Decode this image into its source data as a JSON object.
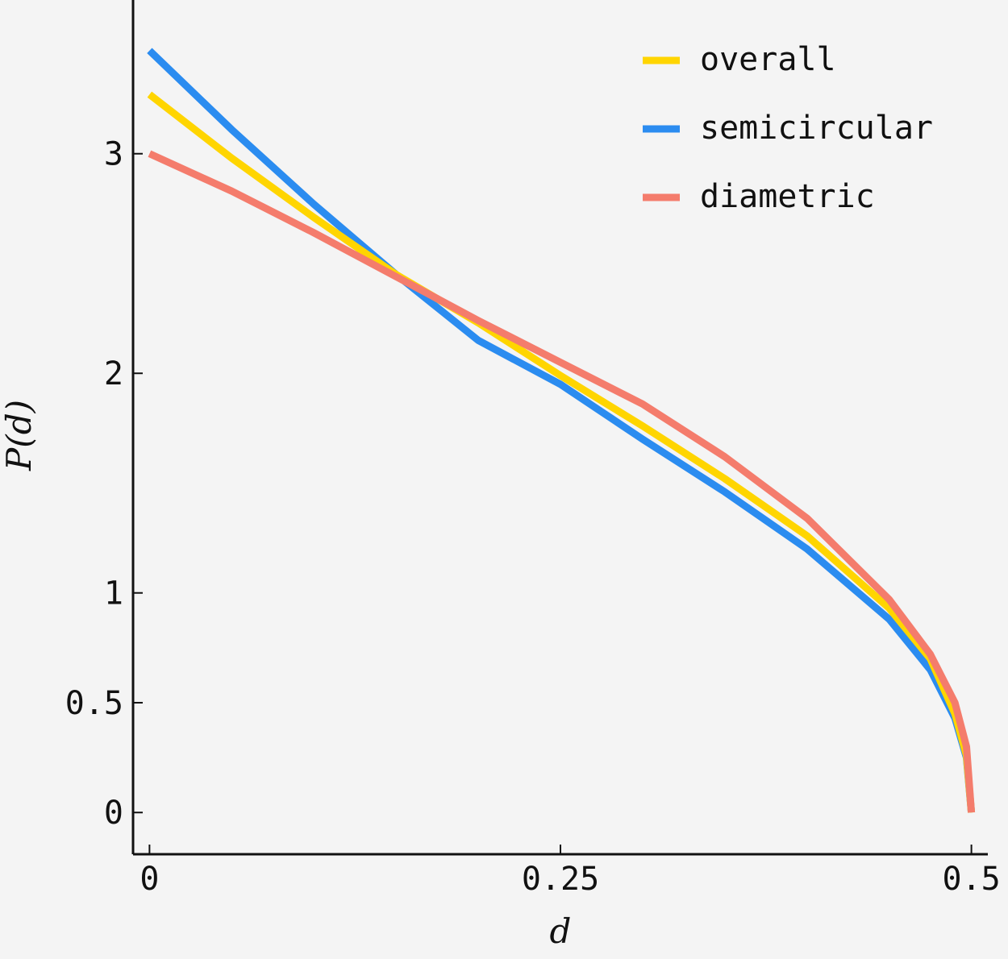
{
  "chart_data": {
    "type": "line",
    "xlabel": "d",
    "ylabel": "P(d)",
    "xlim": [
      -0.01,
      0.51
    ],
    "ylim": [
      -0.19,
      3.7
    ],
    "x_ticks": [
      {
        "value": 0,
        "label": "0"
      },
      {
        "value": 0.25,
        "label": "0.25"
      },
      {
        "value": 0.5,
        "label": "0.5"
      }
    ],
    "y_ticks": [
      {
        "value": 0,
        "label": "0"
      },
      {
        "value": 0.5,
        "label": "0.5"
      },
      {
        "value": 1,
        "label": "1"
      },
      {
        "value": 2,
        "label": "2"
      },
      {
        "value": 3,
        "label": "3"
      }
    ],
    "legend_position": "top-right",
    "grid": false,
    "series": [
      {
        "name": "overall",
        "color": "#ffd500",
        "points": [
          [
            0,
            3.27
          ],
          [
            0.05,
            2.98
          ],
          [
            0.1,
            2.71
          ],
          [
            0.15,
            2.45
          ],
          [
            0.2,
            2.23
          ],
          [
            0.25,
            1.99
          ],
          [
            0.3,
            1.76
          ],
          [
            0.35,
            1.52
          ],
          [
            0.4,
            1.26
          ],
          [
            0.45,
            0.93
          ],
          [
            0.475,
            0.7
          ],
          [
            0.49,
            0.45
          ],
          [
            0.497,
            0.26
          ],
          [
            0.5,
            0
          ]
        ]
      },
      {
        "name": "semicircular",
        "color": "#2b8cf0",
        "points": [
          [
            0,
            3.47
          ],
          [
            0.05,
            3.11
          ],
          [
            0.1,
            2.77
          ],
          [
            0.15,
            2.45
          ],
          [
            0.2,
            2.15
          ],
          [
            0.25,
            1.95
          ],
          [
            0.3,
            1.7
          ],
          [
            0.35,
            1.46
          ],
          [
            0.4,
            1.2
          ],
          [
            0.45,
            0.88
          ],
          [
            0.475,
            0.65
          ],
          [
            0.49,
            0.43
          ],
          [
            0.497,
            0.25
          ],
          [
            0.5,
            0
          ]
        ]
      },
      {
        "name": "diametric",
        "color": "#f47c6c",
        "points": [
          [
            0,
            3.0
          ],
          [
            0.05,
            2.83
          ],
          [
            0.1,
            2.64
          ],
          [
            0.15,
            2.44
          ],
          [
            0.2,
            2.24
          ],
          [
            0.25,
            2.05
          ],
          [
            0.3,
            1.86
          ],
          [
            0.35,
            1.62
          ],
          [
            0.4,
            1.34
          ],
          [
            0.45,
            0.97
          ],
          [
            0.475,
            0.72
          ],
          [
            0.49,
            0.5
          ],
          [
            0.497,
            0.3
          ],
          [
            0.5,
            0
          ]
        ]
      }
    ]
  }
}
